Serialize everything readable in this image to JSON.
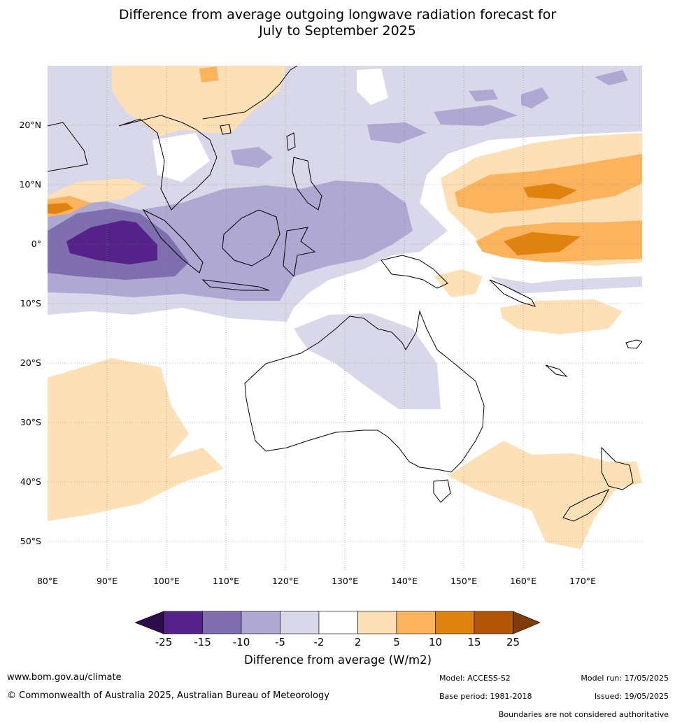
{
  "title": {
    "line1": "Difference from average outgoing longwave radiation forecast for",
    "line2": "July to September 2025"
  },
  "map": {
    "lon_labels": [
      "80°E",
      "90°E",
      "100°E",
      "110°E",
      "120°E",
      "130°E",
      "140°E",
      "150°E",
      "160°E",
      "170°E"
    ],
    "lat_labels": [
      "20°N",
      "10°N",
      "0°",
      "10°S",
      "20°S",
      "30°S",
      "40°S",
      "50°S"
    ]
  },
  "colorbar": {
    "title": "Difference from average (W/m2)",
    "ticks": [
      "-25",
      "-15",
      "-10",
      "-5",
      "-2",
      "2",
      "5",
      "10",
      "15",
      "25"
    ],
    "colors": [
      "#2c0c4b",
      "#55228a",
      "#7f6faf",
      "#aea8d2",
      "#d8d8ea",
      "#ffffff",
      "#fde0b5",
      "#fbb35e",
      "#e0820f",
      "#b35506",
      "#7f3b08"
    ]
  },
  "footer": {
    "website": "www.bom.gov.au/climate",
    "copyright": "© Commonwealth of Australia 2025, Australian Bureau of Meteorology",
    "model": "Model: ACCESS-S2",
    "model_run": "Model run: 17/05/2025",
    "base_period": "Base period: 1981-2018",
    "issued": "Issued: 19/05/2025",
    "disclaimer": "Boundaries are not considered authoritative"
  }
}
